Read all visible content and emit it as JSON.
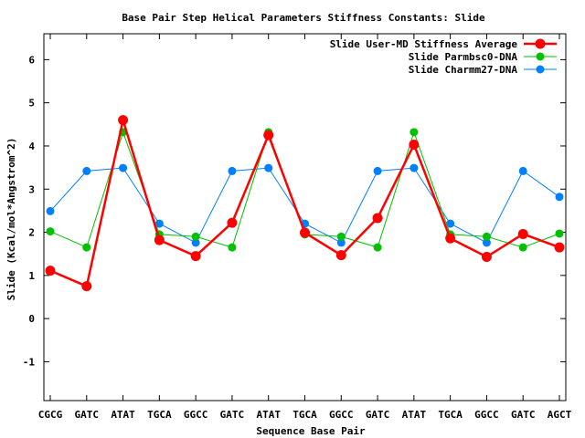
{
  "chart_data": {
    "type": "line",
    "title": "Base Pair Step Helical Parameters Stiffness Constants: Slide",
    "xlabel": "Sequence Base Pair",
    "ylabel": "Slide (Kcal/mol*Angstrom^2)",
    "categories": [
      "CGCG",
      "GATC",
      "ATAT",
      "TGCA",
      "GGCC",
      "GATC",
      "ATAT",
      "TGCA",
      "GGCC",
      "GATC",
      "ATAT",
      "TGCA",
      "GGCC",
      "GATC",
      "AGCT"
    ],
    "ylim": [
      -1.9,
      6.6
    ],
    "yticks": [
      -1,
      0,
      1,
      2,
      3,
      4,
      5,
      6
    ],
    "grid": false,
    "legend_position": "top-right",
    "series": [
      {
        "name": "Slide User-MD Stiffness Average",
        "color": "#ff0000",
        "values": [
          1.11,
          0.75,
          4.6,
          1.82,
          1.45,
          2.22,
          4.25,
          1.99,
          1.47,
          2.33,
          4.03,
          1.86,
          1.43,
          1.96,
          1.65
        ]
      },
      {
        "name": "Slide Parmbsc0-DNA",
        "color": "#00c000",
        "values": [
          2.02,
          1.65,
          4.32,
          1.95,
          1.9,
          1.65,
          4.32,
          1.95,
          1.9,
          1.65,
          4.32,
          1.95,
          1.9,
          1.65,
          1.97
        ]
      },
      {
        "name": "Slide Charmm27-DNA",
        "color": "#0080ff",
        "values": [
          2.49,
          3.42,
          3.49,
          2.2,
          1.76,
          3.42,
          3.49,
          2.2,
          1.76,
          3.42,
          3.49,
          2.2,
          1.76,
          3.42,
          2.82
        ]
      }
    ]
  }
}
